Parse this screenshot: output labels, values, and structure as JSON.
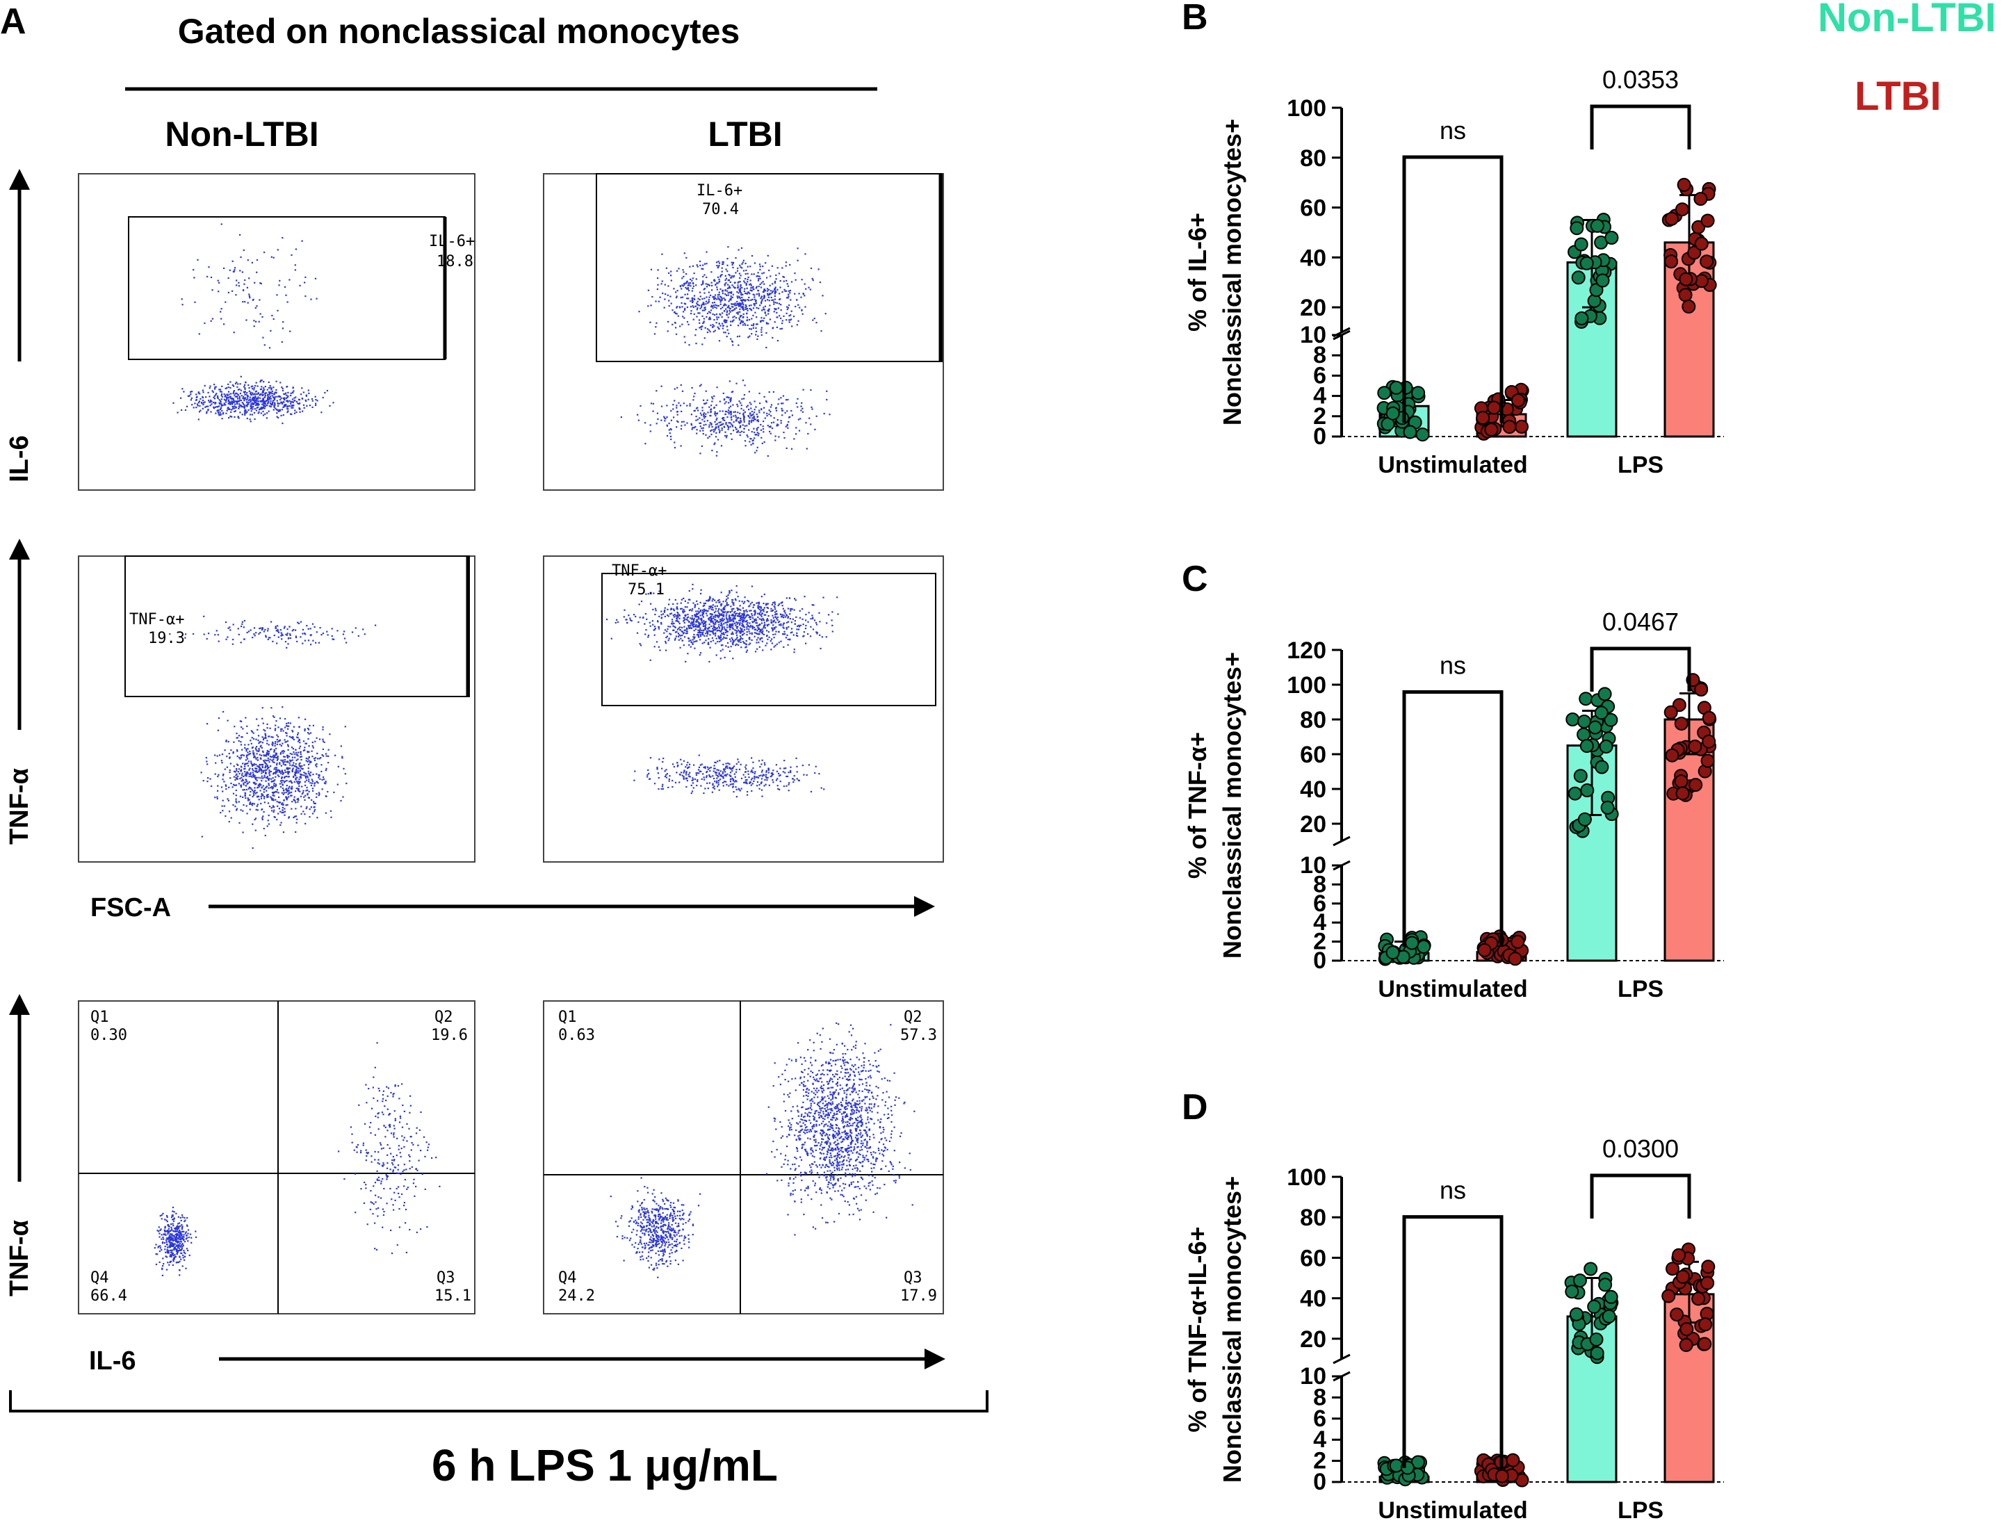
{
  "panelA": {
    "label": "A",
    "header": "Gated on nonclassical monocytes",
    "groups": [
      "Non-LTBI",
      "LTBI"
    ],
    "y_labels": [
      "IL-6",
      "TNF-α",
      "TNF-α"
    ],
    "x_labels": [
      "FSC-A",
      "IL-6"
    ],
    "il6_gates": [
      {
        "name": "IL-6+",
        "value": "18.8"
      },
      {
        "name": "IL-6+",
        "value": "70.4"
      }
    ],
    "tnf_gates": [
      {
        "name": "TNF-α+",
        "value": "19.3"
      },
      {
        "name": "TNF-α+",
        "value": "75.1"
      }
    ],
    "quadrants": [
      {
        "q1": "Q1",
        "q1v": "0.30",
        "q2": "Q2",
        "q2v": "19.6",
        "q3": "Q3",
        "q3v": "15.1",
        "q4": "Q4",
        "q4v": "66.4"
      },
      {
        "q1": "Q1",
        "q1v": "0.63",
        "q2": "Q2",
        "q2v": "57.3",
        "q3": "Q3",
        "q3v": "17.9",
        "q4": "Q4",
        "q4v": "24.2"
      }
    ],
    "footer": "6 h LPS 1 μg/mL"
  },
  "legend": [
    {
      "name": "Non-LTBI",
      "color": "#2fe0a8"
    },
    {
      "name": "LTBI",
      "color": "#c0201e"
    }
  ],
  "colors": {
    "bar_nonltbi": "#7ff5d8",
    "bar_ltbi": "#fa8078",
    "dot_nonltbi": "#117a4c",
    "dot_ltbi": "#8a1410",
    "flow_dots": "#2a36d8"
  },
  "chart_data": [
    {
      "panel": "B",
      "type": "bar",
      "ylabel_line1": "% of IL-6+",
      "ylabel_line2": "Nonclassical monocytes+",
      "categories": [
        "Unstimulated",
        "LPS"
      ],
      "lower_ticks": [
        "0",
        "2",
        "4",
        "6",
        "8",
        "10"
      ],
      "upper_ticks": [
        "20",
        "40",
        "60",
        "80",
        "100"
      ],
      "ylim_lower": [
        0,
        10
      ],
      "ylim_upper": [
        10,
        100
      ],
      "series": [
        {
          "group": "Non-LTBI",
          "means": [
            3.0,
            38
          ],
          "sd": [
            [
              2.2,
              3.8
            ],
            [
              20,
              55
            ]
          ]
        },
        {
          "group": "LTBI",
          "means": [
            2.2,
            46
          ],
          "sd": [
            [
              1.0,
              3.6
            ],
            [
              28,
              65
            ]
          ]
        }
      ],
      "pvalues": [
        "ns",
        "0.0353"
      ]
    },
    {
      "panel": "C",
      "type": "bar",
      "ylabel_line1": "% of TNF-α+",
      "ylabel_line2": "Nonclassical monocytes+",
      "categories": [
        "Unstimulated",
        "LPS"
      ],
      "lower_ticks": [
        "0",
        "2",
        "4",
        "6",
        "8",
        "10"
      ],
      "upper_ticks": [
        "20",
        "40",
        "60",
        "80",
        "100",
        "120"
      ],
      "ylim_lower": [
        0,
        10
      ],
      "ylim_upper": [
        10,
        120
      ],
      "series": [
        {
          "group": "Non-LTBI",
          "means": [
            0.8,
            65
          ],
          "sd": [
            [
              0,
              2.0
            ],
            [
              25,
              85
            ]
          ]
        },
        {
          "group": "LTBI",
          "means": [
            0.9,
            80
          ],
          "sd": [
            [
              0,
              2.0
            ],
            [
              60,
              95
            ]
          ]
        }
      ],
      "pvalues": [
        "ns",
        "0.0467"
      ]
    },
    {
      "panel": "D",
      "type": "bar",
      "ylabel_line1": "% of TNF-α+IL-6+",
      "ylabel_line2": "Nonclassical monocytes+",
      "categories": [
        "Unstimulated",
        "LPS"
      ],
      "lower_ticks": [
        "0",
        "2",
        "4",
        "6",
        "8",
        "10"
      ],
      "upper_ticks": [
        "20",
        "40",
        "60",
        "80",
        "100"
      ],
      "ylim_lower": [
        0,
        10
      ],
      "ylim_upper": [
        10,
        100
      ],
      "series": [
        {
          "group": "Non-LTBI",
          "means": [
            0.5,
            31
          ],
          "sd": [
            [
              0,
              1.6
            ],
            [
              18,
              50
            ]
          ]
        },
        {
          "group": "LTBI",
          "means": [
            0.6,
            42
          ],
          "sd": [
            [
              0,
              1.6
            ],
            [
              28,
              58
            ]
          ]
        }
      ],
      "pvalues": [
        "ns",
        "0.0300"
      ]
    }
  ]
}
